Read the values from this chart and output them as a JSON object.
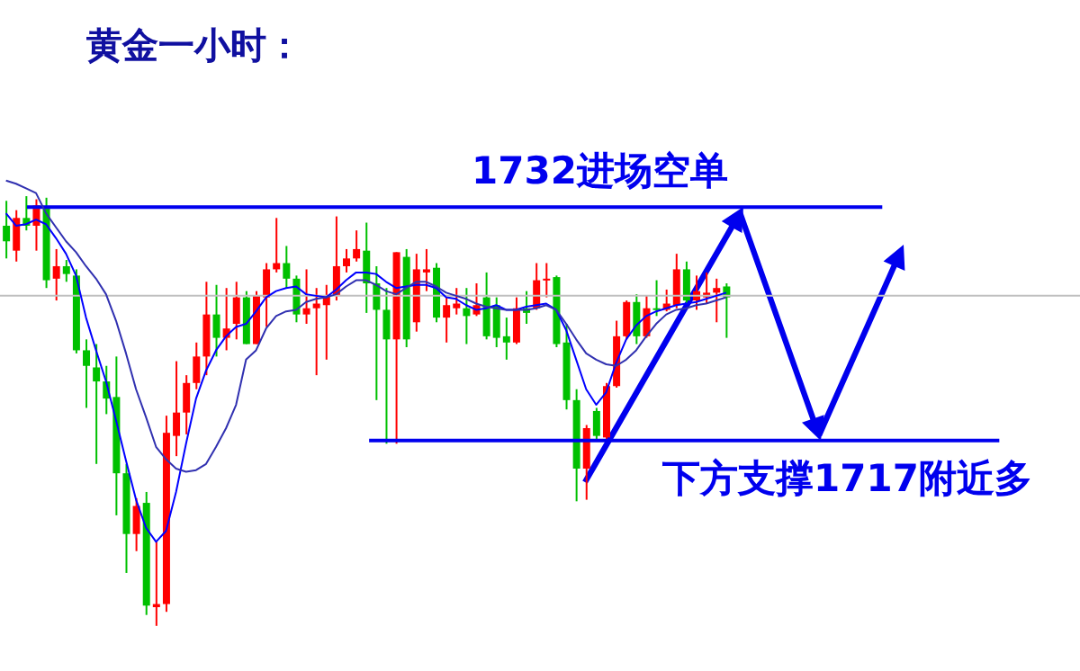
{
  "chart_data": {
    "type": "candlestick",
    "title": "黄金一小时：",
    "categories": [
      null,
      null,
      null,
      null,
      null,
      null,
      null,
      null,
      null,
      null,
      null,
      null,
      null,
      null,
      null,
      null,
      null,
      null,
      null,
      null,
      null,
      null,
      null,
      null,
      null,
      null,
      null,
      null,
      null,
      null,
      null,
      null,
      null,
      null,
      null,
      null,
      null,
      null,
      null,
      null,
      null,
      null,
      null,
      null,
      null,
      null,
      null,
      null,
      null,
      null,
      null,
      null,
      null,
      null,
      null,
      null,
      null,
      null,
      null,
      null,
      null,
      null,
      null,
      null,
      null,
      null,
      null,
      null,
      null,
      null,
      null,
      null,
      null
    ],
    "ohlc": [
      [
        1730.8,
        1732.4,
        1728.7,
        1729.8
      ],
      [
        1729.2,
        1731.8,
        1728.5,
        1731.3
      ],
      [
        1731.3,
        1732.7,
        1730.5,
        1730.8
      ],
      [
        1730.8,
        1732.5,
        1729.2,
        1732.1
      ],
      [
        1731.9,
        1732.6,
        1726.8,
        1727.3
      ],
      [
        1727.4,
        1729.3,
        1726.0,
        1728.2
      ],
      [
        1728.2,
        1728.6,
        1727.2,
        1727.7
      ],
      [
        1727.6,
        1728.0,
        1722.6,
        1722.8
      ],
      [
        1722.8,
        1723.5,
        1719.1,
        1721.8
      ],
      [
        1721.7,
        1723.2,
        1715.5,
        1720.8
      ],
      [
        1720.8,
        1721.8,
        1718.7,
        1719.7
      ],
      [
        1719.8,
        1722.4,
        1712.2,
        1714.9
      ],
      [
        1714.9,
        1715.5,
        1708.5,
        1711.0
      ],
      [
        1711.0,
        1713.3,
        1709.9,
        1712.8
      ],
      [
        1713.0,
        1713.7,
        1705.8,
        1706.4
      ],
      [
        1706.3,
        1710.5,
        1705.1,
        1706.5
      ],
      [
        1706.5,
        1718.6,
        1706.0,
        1717.5
      ],
      [
        1717.3,
        1722.1,
        1716.0,
        1718.8
      ],
      [
        1718.8,
        1721.2,
        1717.4,
        1720.7
      ],
      [
        1720.7,
        1723.3,
        1720.3,
        1722.4
      ],
      [
        1722.4,
        1727.2,
        1721.2,
        1725.1
      ],
      [
        1725.1,
        1727.0,
        1722.4,
        1723.6
      ],
      [
        1723.6,
        1726.8,
        1722.8,
        1724.2
      ],
      [
        1724.5,
        1727.2,
        1723.5,
        1726.2
      ],
      [
        1726.2,
        1726.6,
        1723.2,
        1723.2
      ],
      [
        1723.2,
        1726.6,
        1723.2,
        1726.3
      ],
      [
        1726.2,
        1728.4,
        1724.3,
        1728.0
      ],
      [
        1728.0,
        1731.3,
        1727.8,
        1728.4
      ],
      [
        1728.4,
        1729.5,
        1726.8,
        1727.4
      ],
      [
        1727.4,
        1727.6,
        1724.6,
        1725.1
      ],
      [
        1725.1,
        1728.0,
        1724.5,
        1725.5
      ],
      [
        1725.5,
        1726.8,
        1721.2,
        1725.8
      ],
      [
        1725.7,
        1727.0,
        1722.2,
        1726.3
      ],
      [
        1726.3,
        1731.4,
        1726.0,
        1728.2
      ],
      [
        1728.2,
        1729.3,
        1727.8,
        1728.7
      ],
      [
        1728.7,
        1730.5,
        1728.5,
        1729.3
      ],
      [
        1729.2,
        1731.0,
        1725.2,
        1727.1
      ],
      [
        1727.1,
        1728.2,
        1719.6,
        1725.4
      ],
      [
        1725.4,
        1726.8,
        1716.8,
        1723.5
      ],
      [
        1723.5,
        1729.1,
        1716.8,
        1729.1
      ],
      [
        1728.8,
        1729.3,
        1723.0,
        1723.5
      ],
      [
        1724.6,
        1729.0,
        1724.0,
        1728.0
      ],
      [
        1727.8,
        1729.3,
        1726.6,
        1728.0
      ],
      [
        1728.1,
        1728.4,
        1724.6,
        1724.9
      ],
      [
        1724.9,
        1726.2,
        1723.3,
        1725.7
      ],
      [
        1725.5,
        1726.8,
        1725.1,
        1725.8
      ],
      [
        1725.5,
        1726.8,
        1723.2,
        1725.0
      ],
      [
        1725.1,
        1727.1,
        1725.0,
        1725.7
      ],
      [
        1726.2,
        1727.8,
        1723.5,
        1723.7
      ],
      [
        1725.7,
        1726.2,
        1723.0,
        1723.6
      ],
      [
        1723.7,
        1724.9,
        1722.2,
        1723.3
      ],
      [
        1723.3,
        1726.2,
        1723.2,
        1725.5
      ],
      [
        1725.5,
        1726.6,
        1724.5,
        1725.2
      ],
      [
        1725.5,
        1728.4,
        1725.4,
        1727.3
      ],
      [
        1727.3,
        1728.4,
        1726.2,
        1727.4
      ],
      [
        1727.5,
        1727.6,
        1723.0,
        1723.2
      ],
      [
        1723.3,
        1724.5,
        1719.0,
        1719.6
      ],
      [
        1719.6,
        1720.3,
        1713.1,
        1715.2
      ],
      [
        1715.2,
        1718.0,
        1713.2,
        1717.8
      ],
      [
        1718.9,
        1719.1,
        1717.1,
        1717.3
      ],
      [
        1717.2,
        1720.7,
        1717.1,
        1720.5
      ],
      [
        1720.5,
        1724.7,
        1720.4,
        1723.7
      ],
      [
        1723.7,
        1726.0,
        1723.5,
        1725.9
      ],
      [
        1725.9,
        1726.4,
        1723.2,
        1723.7
      ],
      [
        1723.7,
        1726.3,
        1723.6,
        1725.5
      ],
      [
        1725.5,
        1727.3,
        1725.0,
        1725.4
      ],
      [
        1725.4,
        1726.7,
        1725.3,
        1725.8
      ],
      [
        1725.7,
        1729.0,
        1725.5,
        1728.0
      ],
      [
        1728.0,
        1728.5,
        1725.8,
        1726.0
      ],
      [
        1726.0,
        1727.6,
        1725.4,
        1726.6
      ],
      [
        1726.2,
        1727.8,
        1725.8,
        1726.5
      ],
      [
        1726.5,
        1727.4,
        1724.6,
        1726.8
      ],
      [
        1726.9,
        1727.1,
        1723.6,
        1726.2
      ]
    ],
    "colors": [
      "#00c000",
      "#ff0000",
      "#00c000",
      "#ff0000",
      "#00c000",
      "#ff0000",
      "#00c000",
      "#00c000",
      "#00c000",
      "#00c000",
      "#00c000",
      "#00c000",
      "#00c000",
      "#ff0000",
      "#00c000",
      "#ff0000",
      "#ff0000",
      "#ff0000",
      "#ff0000",
      "#ff0000",
      "#ff0000",
      "#00c000",
      "#ff0000",
      "#ff0000",
      "#00c000",
      "#ff0000",
      "#ff0000",
      "#ff0000",
      "#00c000",
      "#00c000",
      "#ff0000",
      "#ff0000",
      "#ff0000",
      "#ff0000",
      "#ff0000",
      "#ff0000",
      "#00c000",
      "#00c000",
      "#00c000",
      "#ff0000",
      "#00c000",
      "#ff0000",
      "#ff0000",
      "#00c000",
      "#ff0000",
      "#ff0000",
      "#00c000",
      "#ff0000",
      "#00c000",
      "#00c000",
      "#00c000",
      "#ff0000",
      "#00c000",
      "#ff0000",
      "#ff0000",
      "#00c000",
      "#00c000",
      "#00c000",
      "#ff0000",
      "#00c000",
      "#ff0000",
      "#ff0000",
      "#ff0000",
      "#00c000",
      "#ff0000",
      "#00c000",
      "#ff0000",
      "#ff0000",
      "#00c000",
      "#ff0000",
      "#ff0000",
      "#ff0000",
      "#00c000"
    ],
    "series": [
      {
        "type": "line",
        "color": "#0000ff",
        "values": [
          1731.6,
          1730.8,
          1730.9,
          1731.2,
          1730.9,
          1730.0,
          1729.0,
          1727.6,
          1724.9,
          1722.8,
          1720.8,
          1718.3,
          1715.7,
          1713.2,
          1711.4,
          1710.5,
          1711.2,
          1713.7,
          1716.8,
          1719.7,
          1721.5,
          1722.8,
          1723.7,
          1724.3,
          1724.5,
          1725.3,
          1726.2,
          1726.6,
          1726.8,
          1726.9,
          1726.4,
          1726.3,
          1726.2,
          1726.7,
          1727.3,
          1727.8,
          1727.8,
          1727.7,
          1727.2,
          1726.8,
          1726.9,
          1727.0,
          1727.0,
          1726.8,
          1726.2,
          1726.1,
          1725.7,
          1725.4,
          1725.5,
          1725.7,
          1725.4,
          1725.4,
          1725.6,
          1725.7,
          1725.8,
          1725.4,
          1724.1,
          1722.2,
          1720.3,
          1719.3,
          1720.1,
          1722.0,
          1723.5,
          1724.4,
          1725.0,
          1725.3,
          1725.5,
          1725.7,
          1725.8,
          1725.9,
          1726.1,
          1726.3,
          1726.5
        ]
      },
      {
        "type": "line",
        "color": "#3030b0",
        "values": [
          1733.7,
          1733.5,
          1733.2,
          1732.9,
          1731.6,
          1730.7,
          1729.8,
          1729.1,
          1728.2,
          1727.4,
          1726.4,
          1724.7,
          1722.6,
          1720.3,
          1718.5,
          1716.6,
          1715.8,
          1715.2,
          1715.0,
          1715.1,
          1715.5,
          1716.6,
          1717.8,
          1719.3,
          1722.2,
          1722.8,
          1724.2,
          1725.0,
          1725.3,
          1725.4,
          1725.9,
          1726.1,
          1726.2,
          1726.4,
          1726.9,
          1727.3,
          1727.3,
          1727.0,
          1726.6,
          1726.4,
          1726.8,
          1727.2,
          1727.2,
          1726.9,
          1726.5,
          1726.3,
          1726.1,
          1725.8,
          1725.6,
          1725.5,
          1725.4,
          1725.4,
          1725.4,
          1725.5,
          1725.7,
          1725.4,
          1724.5,
          1723.5,
          1722.6,
          1722.2,
          1721.9,
          1721.8,
          1722.2,
          1722.8,
          1723.7,
          1724.5,
          1725.1,
          1725.4,
          1725.5,
          1725.7,
          1725.8,
          1726.0,
          1726.2
        ]
      }
    ],
    "ylim": [
      1702.2,
      1745.3
    ],
    "tick_labels": false,
    "ref_lines": [
      {
        "axis": "y",
        "value": 1732,
        "label": "1732进场空单",
        "color": "#0000ee"
      },
      {
        "axis": "y",
        "value": 1717,
        "label": "下方支撑1717附近多",
        "color": "#0000ee"
      },
      {
        "axis": "y",
        "value": 1726.3,
        "color": "#c0c0c0"
      }
    ]
  }
}
